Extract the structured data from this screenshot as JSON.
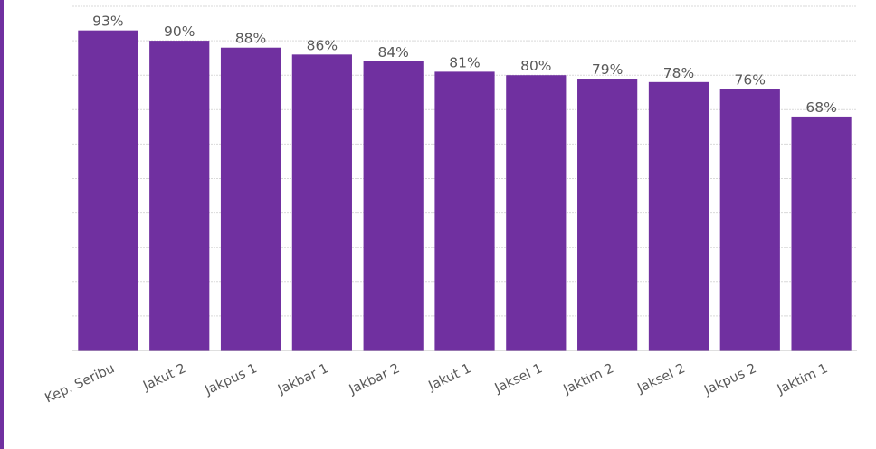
{
  "chart_data": {
    "type": "bar",
    "categories": [
      "Kep. Seribu",
      "Jakut 2",
      "Jakpus 1",
      "Jakbar 1",
      "Jakbar 2",
      "Jakut 1",
      "Jaksel 1",
      "Jaktim 2",
      "Jaksel 2",
      "Jakpus 2",
      "Jaktim 1"
    ],
    "values": [
      93,
      90,
      88,
      86,
      84,
      81,
      80,
      79,
      78,
      76,
      68
    ],
    "value_labels": [
      "93%",
      "90%",
      "88%",
      "86%",
      "84%",
      "81%",
      "80%",
      "79%",
      "78%",
      "76%",
      "68%"
    ],
    "title": "",
    "xlabel": "",
    "ylabel": "",
    "ylim": [
      0,
      100
    ],
    "grid": true,
    "legend": "none"
  },
  "colors": {
    "bar": "#7030A0",
    "border": "#7030A0",
    "grid": "#d9d9d9",
    "text": "#595959"
  }
}
